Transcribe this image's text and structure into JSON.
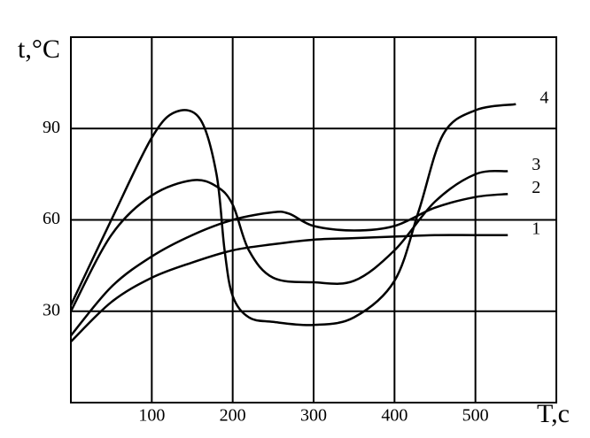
{
  "chart_data": {
    "type": "line",
    "y_label": "t,°C",
    "x_label": "T,c",
    "xlim": [
      0,
      600
    ],
    "ylim": [
      0,
      120
    ],
    "xticks": [
      100,
      200,
      300,
      400,
      500
    ],
    "yticks": [
      30,
      60,
      90
    ],
    "grid": true,
    "color": "#000000",
    "series": [
      {
        "name": "1",
        "color": "#000000",
        "x": [
          0,
          50,
          100,
          150,
          200,
          250,
          300,
          350,
          400,
          450,
          500,
          540
        ],
        "values": [
          20,
          33,
          41,
          46,
          50,
          52,
          53.5,
          54,
          54.5,
          55,
          55,
          55
        ]
      },
      {
        "name": "2",
        "color": "#000000",
        "x": [
          0,
          50,
          100,
          150,
          200,
          250,
          270,
          300,
          350,
          400,
          450,
          500,
          540
        ],
        "values": [
          22,
          38,
          48,
          55,
          60,
          62.5,
          62,
          58,
          56.5,
          58,
          64,
          67.5,
          68.5
        ]
      },
      {
        "name": "3",
        "color": "#000000",
        "x": [
          0,
          50,
          100,
          150,
          180,
          200,
          220,
          250,
          300,
          350,
          400,
          450,
          500,
          540
        ],
        "values": [
          30,
          55,
          68,
          73,
          71,
          65,
          50,
          41,
          39.5,
          40,
          50,
          66,
          75,
          76
        ]
      },
      {
        "name": "4",
        "color": "#000000",
        "x": [
          0,
          50,
          100,
          130,
          160,
          180,
          190,
          200,
          220,
          250,
          300,
          350,
          400,
          430,
          460,
          500,
          550
        ],
        "values": [
          32,
          60,
          87,
          95.5,
          93,
          75,
          50,
          35,
          28,
          26.5,
          25.5,
          28,
          40,
          63,
          88,
          96,
          98
        ]
      }
    ]
  }
}
